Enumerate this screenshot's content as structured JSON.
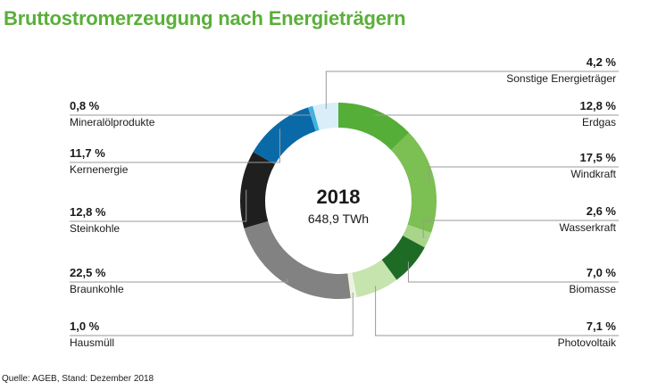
{
  "title": "Bruttostromerzeugung nach Energieträgern",
  "source": "Quelle: AGEB, Stand: Dezember 2018",
  "chart_data": {
    "type": "pie",
    "title": "Bruttostromerzeugung nach Energieträgern",
    "center_year": "2018",
    "center_total": "648,9 TWh",
    "slices": [
      {
        "name": "Erdgas",
        "value": 12.8,
        "label": "12,8 %",
        "color": "#55ae38"
      },
      {
        "name": "Windkraft",
        "value": 17.5,
        "label": "17,5 %",
        "color": "#7cbf52"
      },
      {
        "name": "Wasserkraft",
        "value": 2.6,
        "label": "2,6 %",
        "color": "#a9d58b"
      },
      {
        "name": "Biomasse",
        "value": 7.0,
        "label": "7,0 %",
        "color": "#1e6b25"
      },
      {
        "name": "Photovoltaik",
        "value": 7.1,
        "label": "7,1 %",
        "color": "#c6e4ae"
      },
      {
        "name": "Hausmüll",
        "value": 1.0,
        "label": "1,0 %",
        "color": "#ebf3df"
      },
      {
        "name": "Braunkohle",
        "value": 22.5,
        "label": "22,5 %",
        "color": "#828282"
      },
      {
        "name": "Steinkohle",
        "value": 12.8,
        "label": "12,8 %",
        "color": "#1f1f1f"
      },
      {
        "name": "Kernenergie",
        "value": 11.7,
        "label": "11,7 %",
        "color": "#0a6aa8"
      },
      {
        "name": "Mineralölprodukte",
        "value": 0.8,
        "label": "0,8 %",
        "color": "#3fb1e3"
      },
      {
        "name": "Sonstige Energieträger",
        "value": 4.2,
        "label": "4,2 %",
        "color": "#d9eef8"
      }
    ]
  }
}
